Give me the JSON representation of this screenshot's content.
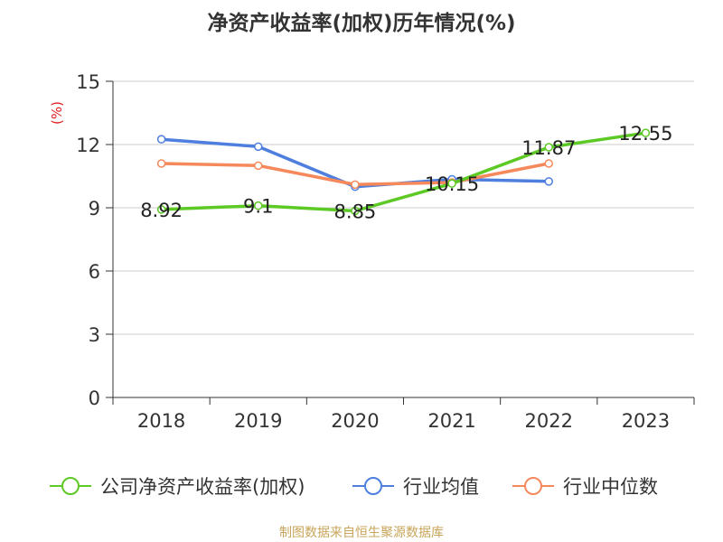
{
  "chart_data": {
    "type": "line",
    "title": "净资产收益率(加权)历年情况(%)",
    "ylabel": "(%)",
    "xlabel": "",
    "categories": [
      "2018",
      "2019",
      "2020",
      "2021",
      "2022",
      "2023"
    ],
    "ylim": [
      0,
      15
    ],
    "yticks": [
      0,
      3,
      6,
      9,
      12,
      15
    ],
    "grid": true,
    "legend_position": "bottom",
    "series": [
      {
        "name": "公司净资产收益率(加权)",
        "color": "#5cc925",
        "values": [
          8.92,
          9.1,
          8.85,
          10.15,
          11.87,
          12.55
        ],
        "labels": [
          "8.92",
          "9.1",
          "8.85",
          "10.15",
          "11.87",
          "12.55"
        ]
      },
      {
        "name": "行业均值",
        "color": "#4e7fdf",
        "values": [
          12.25,
          11.9,
          10.0,
          10.35,
          10.25,
          null
        ]
      },
      {
        "name": "行业中位数",
        "color": "#f5895c",
        "values": [
          11.1,
          11.0,
          10.1,
          10.2,
          11.1,
          null
        ]
      }
    ],
    "source": "制图数据来自恒生聚源数据库",
    "source_color": "#c8a55a"
  }
}
